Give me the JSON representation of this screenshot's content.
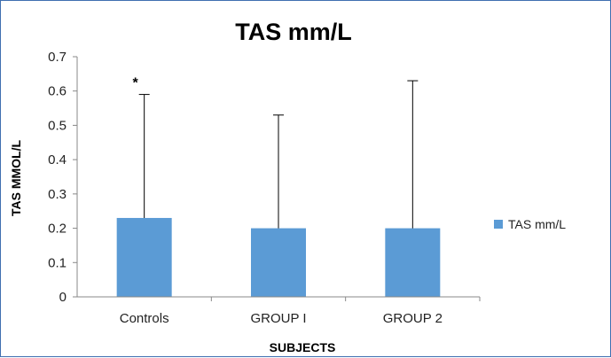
{
  "chart_data": {
    "type": "bar",
    "title": "TAS mm/L",
    "xlabel": "SUBJECTS",
    "ylabel": "TAS MMOL/L",
    "categories": [
      "Controls",
      "GROUP I",
      "GROUP 2"
    ],
    "series": [
      {
        "name": "TAS mm/L",
        "values": [
          0.23,
          0.2,
          0.2
        ],
        "error_upper": [
          0.59,
          0.53,
          0.63
        ],
        "color": "#5b9bd5"
      }
    ],
    "ylim": [
      0,
      0.7
    ],
    "yticks": [
      "0",
      "0.1",
      "0.2",
      "0.3",
      "0.4",
      "0.5",
      "0.6",
      "0.7"
    ],
    "grid": false,
    "legend_position": "right",
    "annotations": [
      {
        "category": "Controls",
        "text": "*"
      }
    ]
  }
}
